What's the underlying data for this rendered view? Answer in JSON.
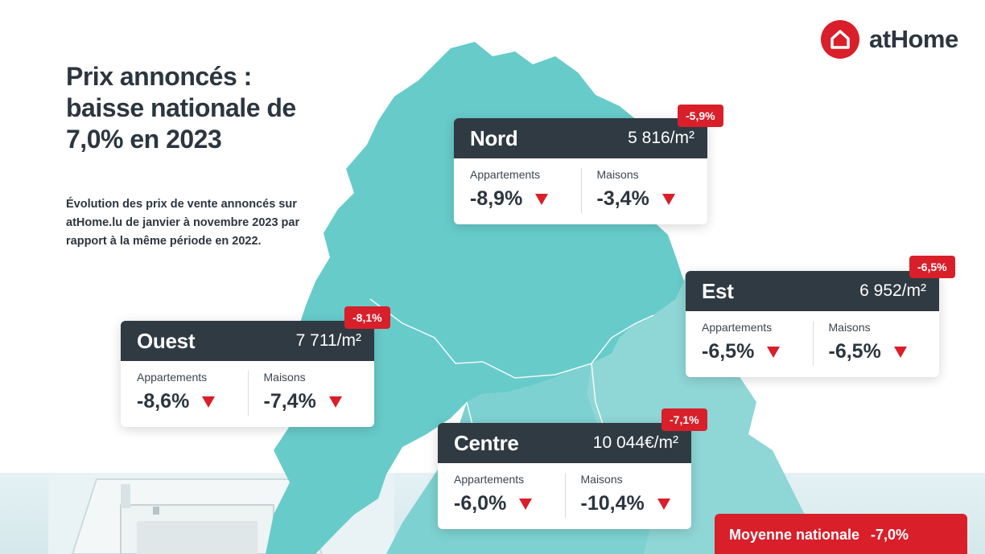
{
  "brand": {
    "name": "atHome",
    "color": "#d81f2a",
    "icon": "house-icon"
  },
  "title": {
    "line1": "Prix annoncés :",
    "line2": "baisse nationale de",
    "line3": "7,0% en 2023"
  },
  "subtitle": "Évolution des prix de vente annoncés sur atHome.lu de janvier à novembre 2023 par rapport à la même période en 2022.",
  "colors": {
    "dark": "#2f3a43",
    "accent": "#d81f2a",
    "map_main": "#67cbca",
    "map_light": "#8fd6d6"
  },
  "regions": {
    "nord": {
      "name": "Nord",
      "price": "5 816/m²",
      "change": "-5,9%",
      "appartements_label": "Appartements",
      "appartements": "-8,9%",
      "maisons_label": "Maisons",
      "maisons": "-3,4%"
    },
    "est": {
      "name": "Est",
      "price": "6 952/m²",
      "change": "-6,5%",
      "appartements_label": "Appartements",
      "appartements": "-6,5%",
      "maisons_label": "Maisons",
      "maisons": "-6,5%"
    },
    "ouest": {
      "name": "Ouest",
      "price": "7 711/m²",
      "change": "-8,1%",
      "appartements_label": "Appartements",
      "appartements": "-8,6%",
      "maisons_label": "Maisons",
      "maisons": "-7,4%"
    },
    "centre": {
      "name": "Centre",
      "price": "10 044€/m²",
      "change": "-7,1%",
      "appartements_label": "Appartements",
      "appartements": "-6,0%",
      "maisons_label": "Maisons",
      "maisons": "-10,4%"
    }
  },
  "national": {
    "label": "Moyenne nationale",
    "value": "-7,0%"
  }
}
